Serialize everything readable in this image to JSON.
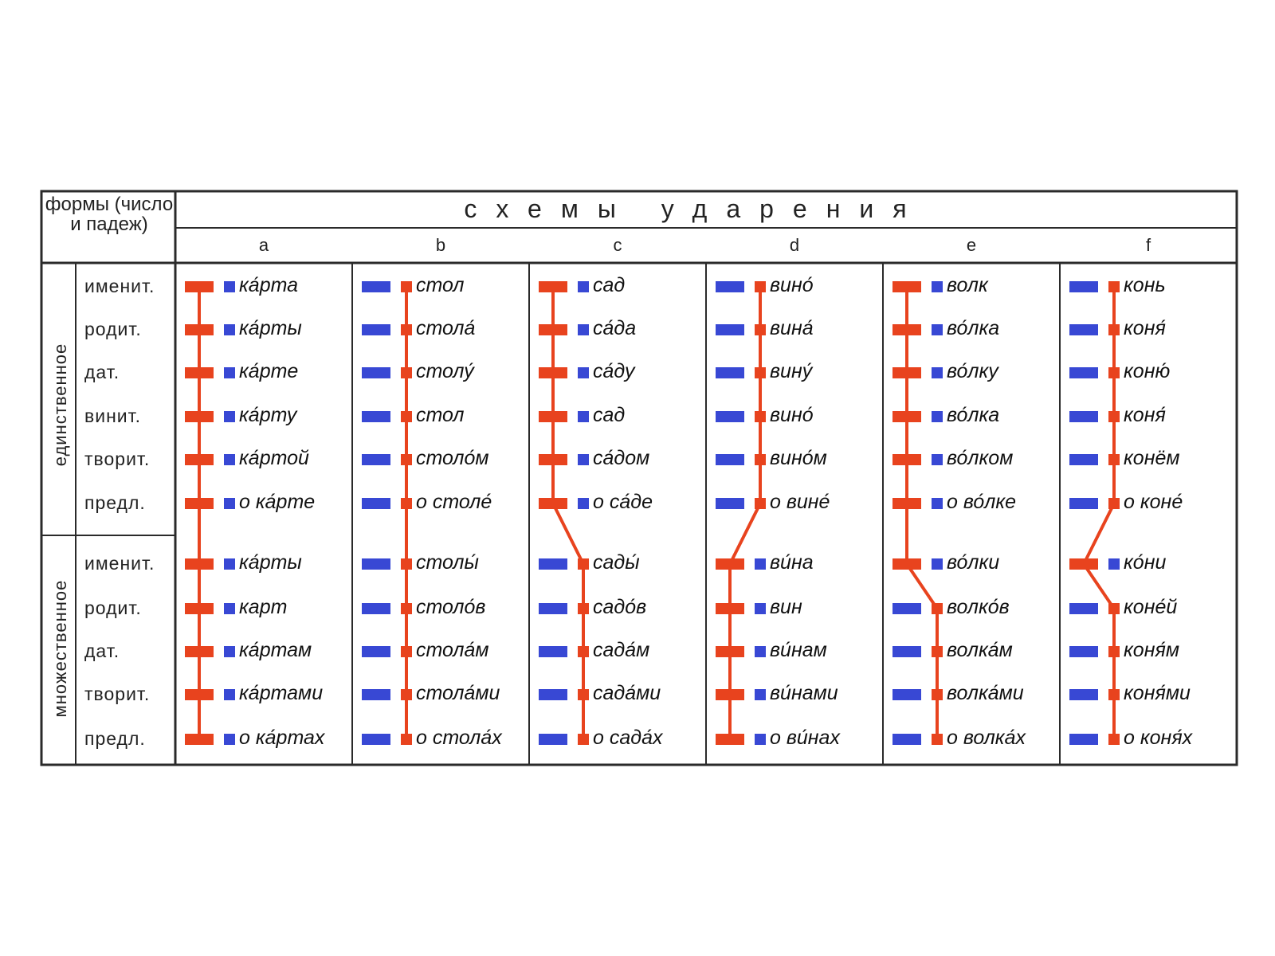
{
  "header": {
    "forms_label": "формы (число и падеж)",
    "schemes_title": "схемы ударения"
  },
  "groups": [
    {
      "label": "единственное",
      "cases": [
        "именит.",
        "родит.",
        "дат.",
        "винит.",
        "творит.",
        "предл."
      ]
    },
    {
      "label": "множественное",
      "cases": [
        "именит.",
        "родит.",
        "дат.",
        "творит.",
        "предл."
      ]
    }
  ],
  "schemes": [
    {
      "letter": "a",
      "words": [
        "ка́рта",
        "ка́рты",
        "ка́рте",
        "ка́рту",
        "ка́ртой",
        "о ка́рте",
        "ка́рты",
        "карт",
        "ка́ртам",
        "ка́ртами",
        "о ка́ртах"
      ],
      "stress": [
        "stem",
        "stem",
        "stem",
        "stem",
        "stem",
        "stem",
        "stem",
        "stem",
        "stem",
        "stem",
        "stem"
      ]
    },
    {
      "letter": "b",
      "words": [
        "стол",
        "стола́",
        "столу́",
        "стол",
        "столо́м",
        "о столе́",
        "столы́",
        "столо́в",
        "стола́м",
        "стола́ми",
        "о стола́х"
      ],
      "stress": [
        "ending",
        "ending",
        "ending",
        "ending",
        "ending",
        "ending",
        "ending",
        "ending",
        "ending",
        "ending",
        "ending"
      ]
    },
    {
      "letter": "c",
      "words": [
        "сад",
        "са́да",
        "са́ду",
        "сад",
        "са́дом",
        "о са́де",
        "сады́",
        "садо́в",
        "сада́м",
        "сада́ми",
        "о сада́х"
      ],
      "stress": [
        "stem",
        "stem",
        "stem",
        "stem",
        "stem",
        "stem",
        "ending",
        "ending",
        "ending",
        "ending",
        "ending"
      ]
    },
    {
      "letter": "d",
      "words": [
        "вино́",
        "вина́",
        "вину́",
        "вино́",
        "вино́м",
        "о вине́",
        "ви́на",
        "вин",
        "ви́нам",
        "ви́нами",
        "о ви́нах"
      ],
      "stress": [
        "ending",
        "ending",
        "ending",
        "ending",
        "ending",
        "ending",
        "stem",
        "stem",
        "stem",
        "stem",
        "stem"
      ]
    },
    {
      "letter": "e",
      "words": [
        "волк",
        "во́лка",
        "во́лку",
        "во́лка",
        "во́лком",
        "о во́лке",
        "во́лки",
        "волко́в",
        "волка́м",
        "волка́ми",
        "о волка́х"
      ],
      "stress": [
        "stem",
        "stem",
        "stem",
        "stem",
        "stem",
        "stem",
        "stem",
        "ending",
        "ending",
        "ending",
        "ending"
      ]
    },
    {
      "letter": "f",
      "words": [
        "конь",
        "коня́",
        "коню́",
        "коня́",
        "конём",
        "о коне́",
        "ко́ни",
        "коне́й",
        "коня́м",
        "коня́ми",
        "о коня́х"
      ],
      "stress": [
        "ending",
        "ending",
        "ending",
        "ending",
        "ending",
        "ending",
        "stem",
        "ending",
        "ending",
        "ending",
        "ending"
      ]
    }
  ],
  "colors": {
    "stressed": "#e8431e",
    "unstressed": "#3848d4",
    "border": "#2a2a2a"
  }
}
